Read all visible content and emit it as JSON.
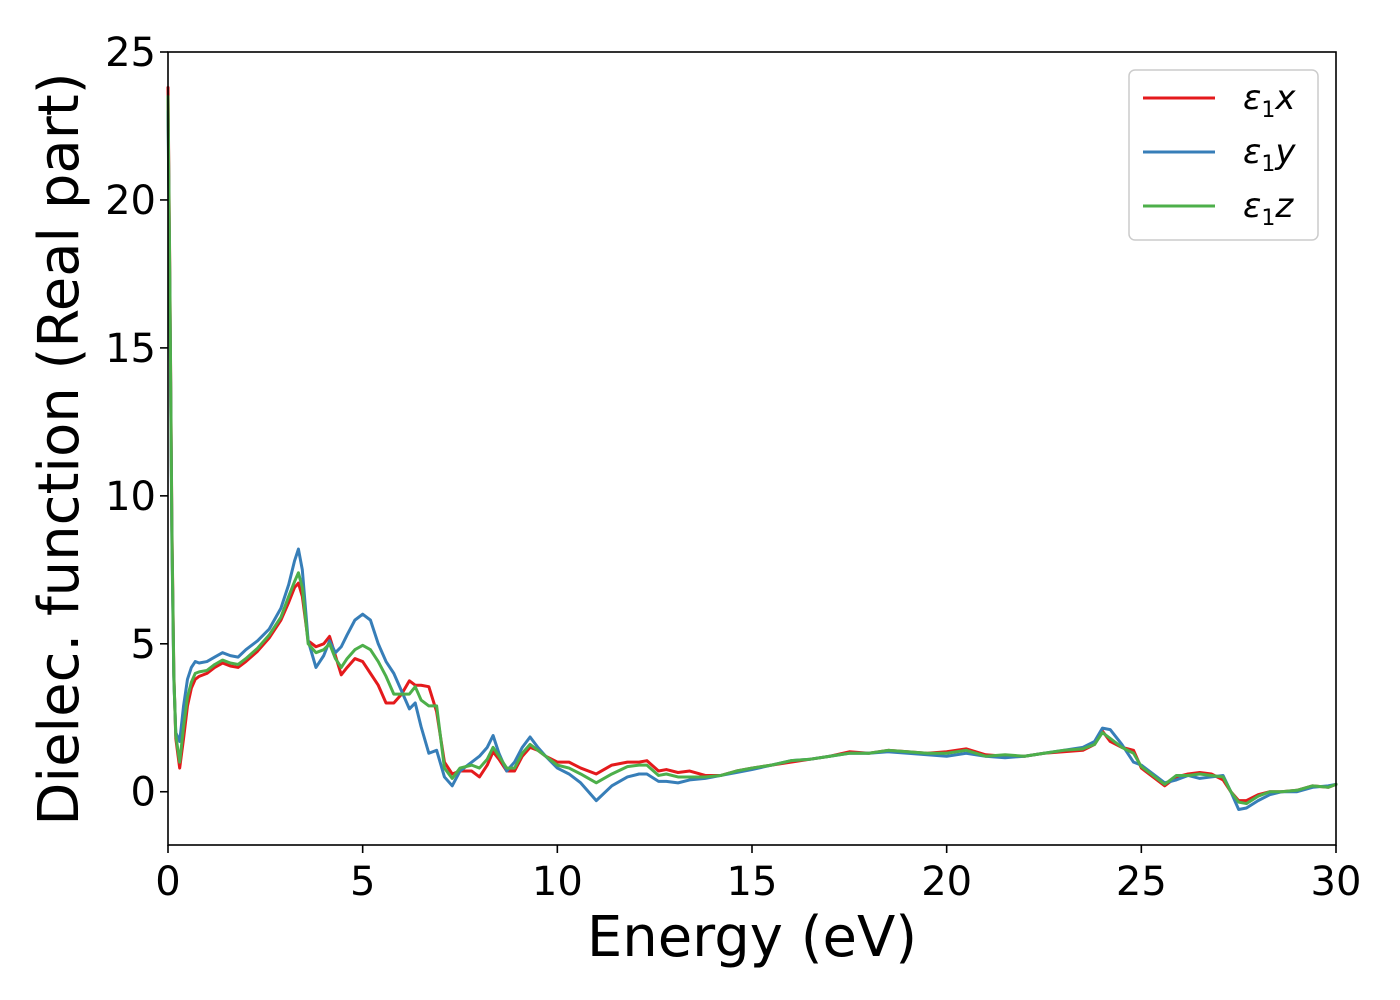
{
  "chart_data": {
    "type": "line",
    "title": "",
    "xlabel": "Energy (eV)",
    "ylabel": "Dielec. function (Real part)",
    "xlim": [
      0,
      30
    ],
    "ylim": [
      -1.8,
      25
    ],
    "xticks": [
      0,
      5,
      10,
      15,
      20,
      25,
      30
    ],
    "yticks": [
      0,
      5,
      10,
      15,
      20,
      25
    ],
    "grid": false,
    "legend_position": "top-right",
    "series": [
      {
        "name": "ε1x",
        "legend_main": "ε",
        "legend_sub": "1",
        "legend_var": "x",
        "color": "#e41a1c",
        "x": [
          0,
          0.05,
          0.1,
          0.15,
          0.2,
          0.3,
          0.4,
          0.5,
          0.6,
          0.7,
          0.8,
          1.0,
          1.2,
          1.4,
          1.6,
          1.8,
          2.0,
          2.3,
          2.6,
          2.9,
          3.1,
          3.25,
          3.35,
          3.45,
          3.6,
          3.8,
          4.0,
          4.15,
          4.3,
          4.45,
          4.6,
          4.8,
          5.0,
          5.2,
          5.4,
          5.6,
          5.8,
          6.0,
          6.2,
          6.35,
          6.5,
          6.7,
          6.9,
          7.1,
          7.3,
          7.5,
          7.8,
          8.0,
          8.2,
          8.35,
          8.5,
          8.7,
          8.9,
          9.1,
          9.3,
          9.5,
          9.7,
          10.0,
          10.3,
          10.6,
          11.0,
          11.4,
          11.8,
          12.1,
          12.3,
          12.6,
          12.8,
          13.1,
          13.4,
          13.8,
          14.2,
          14.6,
          15.0,
          15.5,
          16.0,
          16.5,
          17.0,
          17.5,
          18.0,
          18.5,
          19.0,
          19.5,
          20.0,
          20.5,
          21.0,
          21.5,
          22.0,
          22.5,
          23.0,
          23.5,
          23.8,
          24.0,
          24.2,
          24.5,
          24.8,
          25.0,
          25.3,
          25.6,
          25.9,
          26.2,
          26.5,
          26.8,
          27.1,
          27.3,
          27.5,
          27.7,
          28.0,
          28.3,
          28.6,
          29.0,
          29.4,
          29.8,
          30.0
        ],
        "y": [
          23.8,
          17.0,
          9.0,
          4.0,
          1.8,
          0.8,
          1.8,
          2.9,
          3.5,
          3.8,
          3.9,
          4.0,
          4.2,
          4.35,
          4.25,
          4.2,
          4.4,
          4.75,
          5.2,
          5.8,
          6.4,
          6.9,
          7.05,
          6.6,
          5.1,
          4.9,
          5.0,
          5.25,
          4.6,
          3.95,
          4.2,
          4.5,
          4.4,
          4.0,
          3.6,
          3.0,
          3.0,
          3.3,
          3.75,
          3.6,
          3.6,
          3.55,
          2.7,
          1.0,
          0.6,
          0.7,
          0.7,
          0.5,
          0.9,
          1.35,
          1.1,
          0.7,
          0.7,
          1.2,
          1.5,
          1.4,
          1.2,
          1.0,
          1.0,
          0.8,
          0.6,
          0.9,
          1.0,
          1.0,
          1.05,
          0.7,
          0.75,
          0.65,
          0.7,
          0.55,
          0.55,
          0.7,
          0.8,
          0.9,
          1.0,
          1.1,
          1.2,
          1.35,
          1.3,
          1.4,
          1.35,
          1.3,
          1.35,
          1.45,
          1.25,
          1.2,
          1.2,
          1.3,
          1.35,
          1.4,
          1.6,
          2.05,
          1.7,
          1.5,
          1.4,
          0.8,
          0.5,
          0.2,
          0.5,
          0.6,
          0.65,
          0.6,
          0.4,
          0.0,
          -0.3,
          -0.3,
          -0.1,
          0.0,
          0.0,
          0.05,
          0.2,
          0.15,
          0.25
        ]
      },
      {
        "name": "ε1y",
        "legend_main": "ε",
        "legend_sub": "1",
        "legend_var": "y",
        "color": "#377eb8",
        "x": [
          0,
          0.05,
          0.1,
          0.15,
          0.2,
          0.3,
          0.4,
          0.5,
          0.6,
          0.7,
          0.8,
          1.0,
          1.2,
          1.4,
          1.6,
          1.8,
          2.0,
          2.3,
          2.6,
          2.9,
          3.1,
          3.25,
          3.35,
          3.45,
          3.6,
          3.8,
          4.0,
          4.15,
          4.3,
          4.45,
          4.6,
          4.8,
          5.0,
          5.2,
          5.4,
          5.6,
          5.8,
          6.0,
          6.2,
          6.35,
          6.5,
          6.7,
          6.9,
          7.1,
          7.3,
          7.5,
          7.8,
          8.0,
          8.2,
          8.35,
          8.5,
          8.7,
          8.9,
          9.1,
          9.3,
          9.5,
          9.7,
          10.0,
          10.3,
          10.6,
          11.0,
          11.4,
          11.8,
          12.1,
          12.3,
          12.6,
          12.8,
          13.1,
          13.4,
          13.8,
          14.2,
          14.6,
          15.0,
          15.5,
          16.0,
          16.5,
          17.0,
          17.5,
          18.0,
          18.5,
          19.0,
          19.5,
          20.0,
          20.5,
          21.0,
          21.5,
          22.0,
          22.5,
          23.0,
          23.5,
          23.8,
          24.0,
          24.2,
          24.5,
          24.8,
          25.0,
          25.3,
          25.6,
          25.9,
          26.2,
          26.5,
          26.8,
          27.1,
          27.3,
          27.5,
          27.7,
          28.0,
          28.3,
          28.6,
          29.0,
          29.4,
          29.8,
          30.0
        ],
        "y": [
          23.0,
          16.5,
          8.5,
          3.8,
          2.0,
          1.7,
          2.9,
          3.8,
          4.2,
          4.4,
          4.35,
          4.4,
          4.55,
          4.7,
          4.6,
          4.55,
          4.8,
          5.1,
          5.5,
          6.2,
          7.0,
          7.8,
          8.2,
          7.5,
          5.1,
          4.2,
          4.6,
          5.1,
          4.7,
          4.9,
          5.3,
          5.8,
          6.0,
          5.8,
          5.0,
          4.4,
          4.0,
          3.4,
          2.8,
          3.0,
          2.2,
          1.3,
          1.4,
          0.5,
          0.2,
          0.7,
          1.0,
          1.2,
          1.5,
          1.9,
          1.3,
          0.7,
          1.0,
          1.5,
          1.85,
          1.5,
          1.2,
          0.8,
          0.6,
          0.3,
          -0.3,
          0.2,
          0.5,
          0.6,
          0.6,
          0.35,
          0.35,
          0.3,
          0.4,
          0.45,
          0.55,
          0.65,
          0.75,
          0.9,
          1.05,
          1.1,
          1.2,
          1.3,
          1.3,
          1.35,
          1.3,
          1.25,
          1.2,
          1.3,
          1.2,
          1.15,
          1.2,
          1.3,
          1.4,
          1.5,
          1.7,
          2.15,
          2.1,
          1.6,
          1.0,
          0.9,
          0.6,
          0.3,
          0.4,
          0.55,
          0.45,
          0.5,
          0.55,
          0.0,
          -0.6,
          -0.55,
          -0.3,
          -0.1,
          0.0,
          0.0,
          0.15,
          0.2,
          0.25
        ]
      },
      {
        "name": "ε1z",
        "legend_main": "ε",
        "legend_sub": "1",
        "legend_var": "z",
        "color": "#4daf4a",
        "x": [
          0,
          0.05,
          0.1,
          0.15,
          0.2,
          0.3,
          0.4,
          0.5,
          0.6,
          0.7,
          0.8,
          1.0,
          1.2,
          1.4,
          1.6,
          1.8,
          2.0,
          2.3,
          2.6,
          2.9,
          3.1,
          3.25,
          3.35,
          3.45,
          3.6,
          3.8,
          4.0,
          4.15,
          4.3,
          4.45,
          4.6,
          4.8,
          5.0,
          5.2,
          5.4,
          5.6,
          5.8,
          6.0,
          6.2,
          6.35,
          6.5,
          6.7,
          6.9,
          7.1,
          7.3,
          7.5,
          7.8,
          8.0,
          8.2,
          8.35,
          8.5,
          8.7,
          8.9,
          9.1,
          9.3,
          9.5,
          9.7,
          10.0,
          10.3,
          10.6,
          11.0,
          11.4,
          11.8,
          12.1,
          12.3,
          12.6,
          12.8,
          13.1,
          13.4,
          13.8,
          14.2,
          14.6,
          15.0,
          15.5,
          16.0,
          16.5,
          17.0,
          17.5,
          18.0,
          18.5,
          19.0,
          19.5,
          20.0,
          20.5,
          21.0,
          21.5,
          22.0,
          22.5,
          23.0,
          23.5,
          23.8,
          24.0,
          24.2,
          24.5,
          24.8,
          25.0,
          25.3,
          25.6,
          25.9,
          26.2,
          26.5,
          26.8,
          27.1,
          27.3,
          27.5,
          27.7,
          28.0,
          28.3,
          28.6,
          29.0,
          29.4,
          29.8,
          30.0
        ],
        "y": [
          23.5,
          16.8,
          8.8,
          3.9,
          1.9,
          1.0,
          2.2,
          3.2,
          3.7,
          4.0,
          4.05,
          4.1,
          4.3,
          4.45,
          4.35,
          4.3,
          4.5,
          4.85,
          5.3,
          5.9,
          6.6,
          7.1,
          7.4,
          6.9,
          5.0,
          4.7,
          4.8,
          5.0,
          4.5,
          4.2,
          4.5,
          4.8,
          4.95,
          4.8,
          4.4,
          3.9,
          3.3,
          3.3,
          3.3,
          3.55,
          3.1,
          2.9,
          2.9,
          0.8,
          0.45,
          0.8,
          0.9,
          0.8,
          1.1,
          1.5,
          1.2,
          0.8,
          0.8,
          1.3,
          1.6,
          1.4,
          1.2,
          0.9,
          0.8,
          0.6,
          0.3,
          0.6,
          0.85,
          0.9,
          0.9,
          0.55,
          0.6,
          0.5,
          0.5,
          0.5,
          0.55,
          0.7,
          0.8,
          0.9,
          1.05,
          1.1,
          1.2,
          1.3,
          1.3,
          1.4,
          1.35,
          1.3,
          1.3,
          1.4,
          1.2,
          1.25,
          1.2,
          1.3,
          1.4,
          1.45,
          1.6,
          2.0,
          1.8,
          1.5,
          1.3,
          0.85,
          0.55,
          0.25,
          0.55,
          0.55,
          0.6,
          0.55,
          0.5,
          0.0,
          -0.35,
          -0.4,
          -0.15,
          0.0,
          0.0,
          0.05,
          0.2,
          0.15,
          0.25
        ]
      }
    ]
  }
}
